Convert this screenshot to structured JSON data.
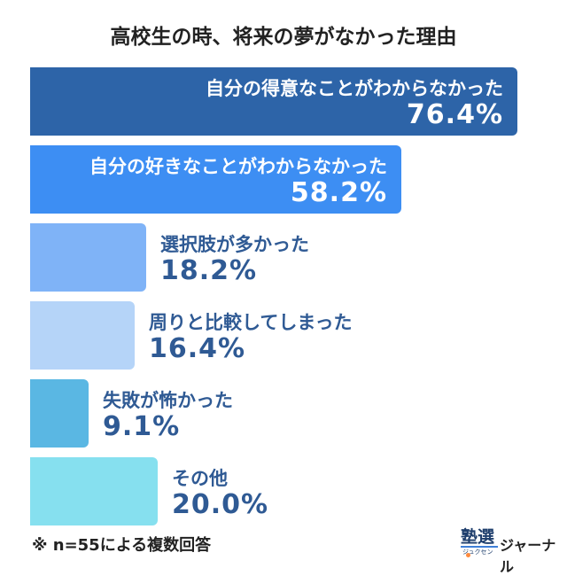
{
  "chart_data": {
    "type": "bar",
    "orientation": "horizontal",
    "title": "高校生の時、将来の夢がなかった理由",
    "unit": "%",
    "xlim": [
      0,
      100
    ],
    "categories": [
      "自分の得意なことがわからなかった",
      "自分の好きなことがわからなかった",
      "選択肢が多かった",
      "周りと比較してしまった",
      "失敗が怖かった",
      "その他"
    ],
    "values": [
      76.4,
      58.2,
      18.2,
      16.4,
      9.1,
      20.0
    ],
    "value_labels": [
      "76.4%",
      "58.2%",
      "18.2%",
      "16.4%",
      "9.1%",
      "20.0%"
    ],
    "colors": [
      "#2d64a8",
      "#3d8ef3",
      "#7fb3f7",
      "#b5d4f8",
      "#5ab7e3",
      "#86e0ef"
    ]
  },
  "footnote": "※ n=55による複数回答",
  "logo": {
    "kanji": "塾選",
    "small": "ジュクセン",
    "text": "ジャーナル"
  }
}
